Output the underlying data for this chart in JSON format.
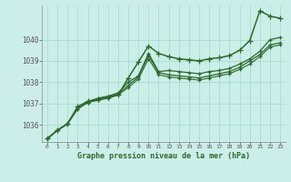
{
  "title": "Graphe pression niveau de la mer (hPa)",
  "background_color": "#cceee8",
  "grid_color": "#99ddcc",
  "line_color": "#2d6a2d",
  "marker_color": "#2d6a2d",
  "x_labels": [
    "0",
    "1",
    "2",
    "3",
    "4",
    "5",
    "6",
    "7",
    "8",
    "9",
    "10",
    "11",
    "12",
    "13",
    "14",
    "15",
    "16",
    "17",
    "18",
    "19",
    "20",
    "21",
    "22",
    "23"
  ],
  "ylim": [
    1035.2,
    1041.6
  ],
  "yticks": [
    1036,
    1037,
    1038,
    1039,
    1040
  ],
  "series": [
    [
      1035.35,
      1035.75,
      1036.05,
      1036.85,
      1037.1,
      1037.2,
      1037.3,
      1037.4,
      1038.2,
      1038.95,
      1039.7,
      1039.35,
      1039.2,
      1039.1,
      1039.05,
      1039.0,
      1039.1,
      1039.15,
      1039.25,
      1039.5,
      1039.95,
      1041.35,
      1041.1,
      1041.0
    ],
    [
      1035.35,
      1035.75,
      1036.05,
      1036.85,
      1037.1,
      1037.25,
      1037.35,
      1037.5,
      1038.0,
      1038.3,
      1039.35,
      1038.5,
      1038.55,
      1038.5,
      1038.45,
      1038.4,
      1038.5,
      1038.55,
      1038.65,
      1038.85,
      1039.1,
      1039.45,
      1040.0,
      1040.1
    ],
    [
      1035.35,
      1035.75,
      1036.05,
      1036.75,
      1037.05,
      1037.2,
      1037.3,
      1037.45,
      1037.85,
      1038.25,
      1039.25,
      1038.45,
      1038.35,
      1038.3,
      1038.25,
      1038.2,
      1038.3,
      1038.4,
      1038.5,
      1038.7,
      1039.0,
      1039.3,
      1039.75,
      1039.85
    ],
    [
      1035.35,
      1035.75,
      1036.05,
      1036.75,
      1037.05,
      1037.15,
      1037.25,
      1037.4,
      1037.75,
      1038.15,
      1039.1,
      1038.35,
      1038.25,
      1038.2,
      1038.15,
      1038.1,
      1038.2,
      1038.3,
      1038.4,
      1038.6,
      1038.85,
      1039.2,
      1039.65,
      1039.75
    ]
  ]
}
